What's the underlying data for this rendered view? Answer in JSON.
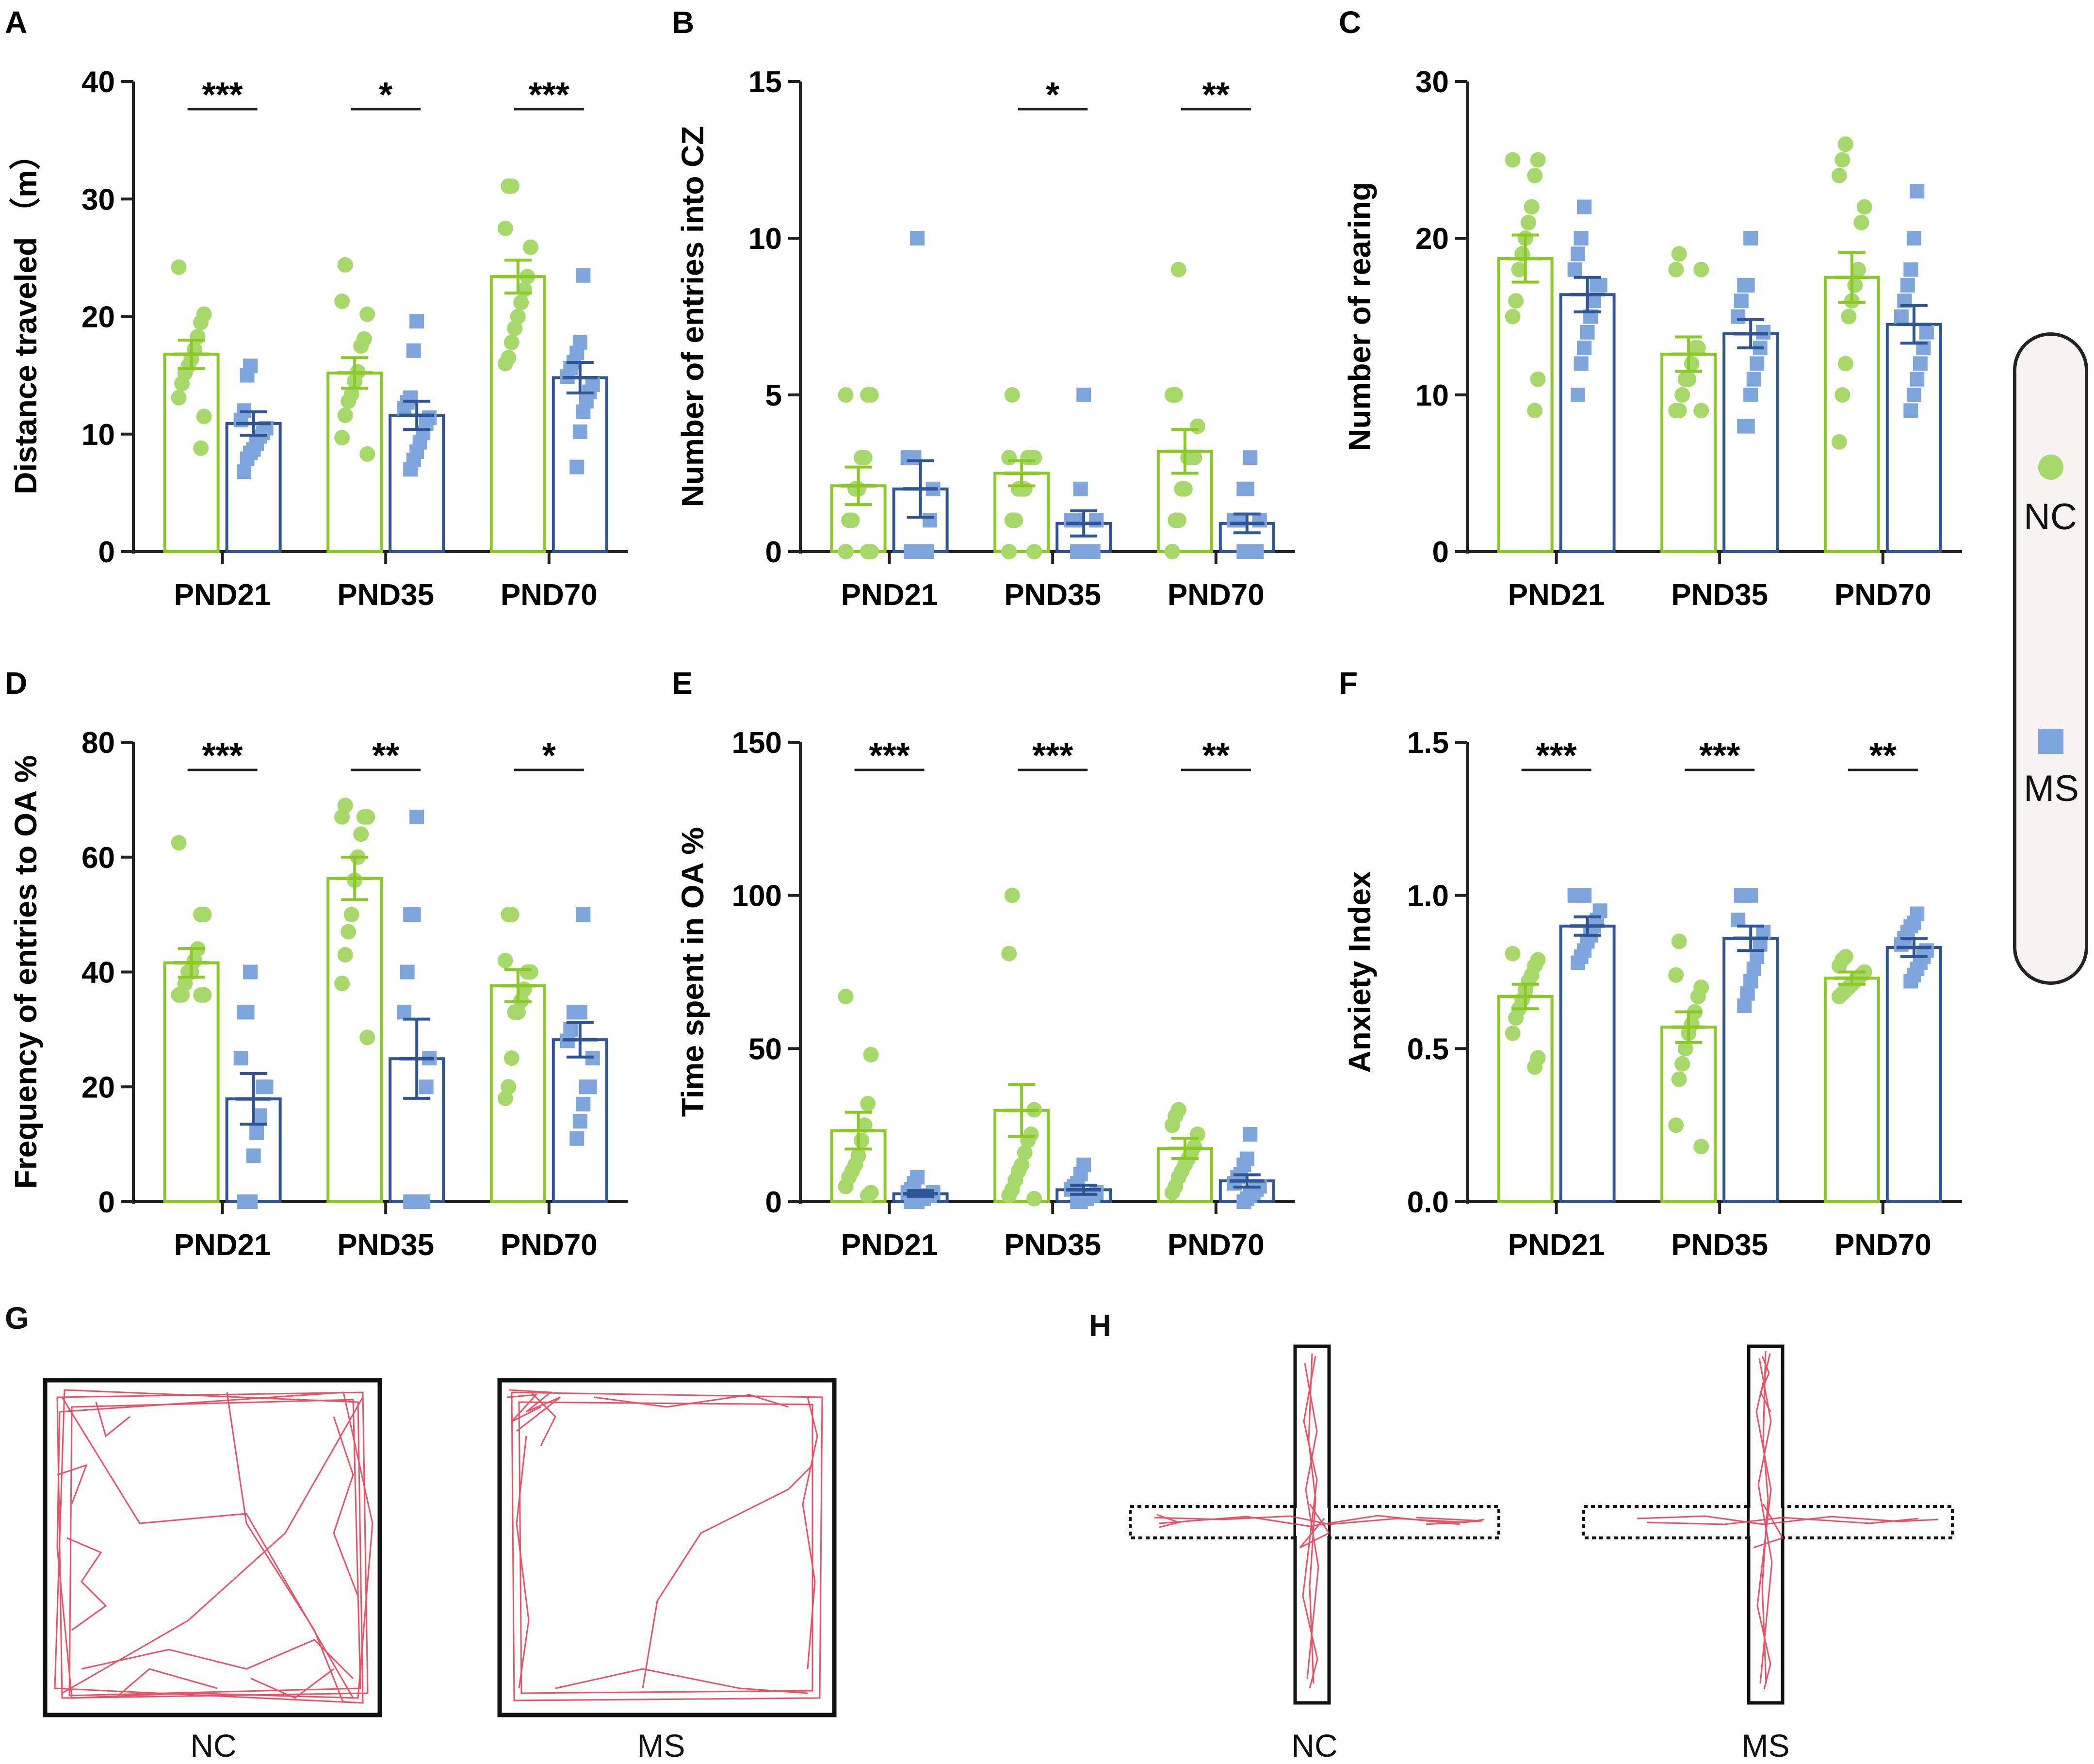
{
  "colors": {
    "nc": "#8ac926",
    "nc_dot": "#a6d96a",
    "ms": "#2f5597",
    "ms_dot": "#7ea6dc",
    "track": "#e8334a",
    "axis": "#222222"
  },
  "legend": {
    "nc_label": "NC",
    "ms_label": "MS"
  },
  "panels": {
    "G": {
      "label": "G",
      "nc_caption": "NC",
      "ms_caption": "MS"
    },
    "H": {
      "label": "H",
      "nc_caption": "NC",
      "ms_caption": "MS"
    }
  },
  "chart_data": [
    {
      "panel": "A",
      "type": "bar",
      "ylabel": "Distance traveled （m）",
      "categories": [
        "PND21",
        "PND35",
        "PND70"
      ],
      "ylim": [
        0,
        40
      ],
      "yticks": [
        0,
        10,
        20,
        30,
        40
      ],
      "significance": [
        "***",
        "*",
        "***"
      ],
      "series": [
        {
          "name": "NC",
          "values": [
            16.8,
            15.2,
            23.4
          ],
          "sem": [
            1.2,
            1.3,
            1.4
          ],
          "points": [
            [
              24.2,
              20.2,
              19.5,
              18.3,
              17.2,
              16.4,
              15.8,
              15.2,
              14.3,
              13.1,
              11.5,
              8.8
            ],
            [
              24.4,
              21.3,
              20.2,
              18.1,
              17.5,
              15.3,
              14.5,
              13.4,
              12.8,
              11.6,
              9.7,
              8.3
            ],
            [
              31.1,
              31.1,
              27.5,
              25.9,
              23.4,
              22.3,
              21.2,
              20.0,
              19.0,
              17.8,
              16.5,
              16.0
            ]
          ]
        },
        {
          "name": "MS",
          "values": [
            10.9,
            11.6,
            14.8
          ],
          "sem": [
            1.0,
            1.2,
            1.3
          ],
          "points": [
            [
              15.8,
              15.0,
              12.0,
              11.2,
              10.5,
              10.1,
              9.8,
              9.2,
              8.7,
              8.4,
              7.9,
              6.8
            ],
            [
              19.6,
              17.1,
              13.1,
              12.7,
              12.2,
              11.4,
              10.9,
              10.1,
              9.3,
              8.5,
              7.8,
              7.0
            ],
            [
              23.5,
              17.8,
              16.9,
              16.1,
              15.6,
              14.9,
              14.2,
              13.6,
              12.8,
              11.9,
              10.2,
              7.2
            ]
          ]
        }
      ]
    },
    {
      "panel": "B",
      "type": "bar",
      "ylabel": "Number of entries into CZ",
      "categories": [
        "PND21",
        "PND35",
        "PND70"
      ],
      "ylim": [
        0,
        15
      ],
      "yticks": [
        0,
        5,
        10,
        15
      ],
      "significance": [
        "",
        "*",
        "**"
      ],
      "series": [
        {
          "name": "NC",
          "values": [
            2.1,
            2.5,
            3.2
          ],
          "sem": [
            0.6,
            0.4,
            0.7
          ],
          "points": [
            [
              5,
              5,
              5,
              3,
              3,
              2,
              2,
              1,
              1,
              0,
              0,
              0
            ],
            [
              5,
              3,
              3,
              3,
              3,
              2,
              2,
              2,
              1,
              1,
              0,
              0
            ],
            [
              9,
              5,
              5,
              4,
              3,
              3,
              3,
              2,
              2,
              1,
              1,
              0
            ]
          ]
        },
        {
          "name": "MS",
          "values": [
            2.0,
            0.9,
            0.9
          ],
          "sem": [
            0.9,
            0.4,
            0.3
          ],
          "points": [
            [
              10,
              3,
              3,
              3,
              2,
              1,
              0,
              0,
              0,
              0,
              0,
              0
            ],
            [
              5,
              2,
              1,
              1,
              1,
              1,
              0,
              0,
              0,
              0,
              0,
              0
            ],
            [
              3,
              2,
              2,
              1,
              1,
              1,
              1,
              0,
              0,
              0,
              0,
              0
            ]
          ]
        }
      ]
    },
    {
      "panel": "C",
      "type": "bar",
      "ylabel": "Number of rearing",
      "categories": [
        "PND21",
        "PND35",
        "PND70"
      ],
      "ylim": [
        0,
        30
      ],
      "yticks": [
        0,
        10,
        20,
        30
      ],
      "significance": [
        "",
        "",
        ""
      ],
      "series": [
        {
          "name": "NC",
          "values": [
            18.7,
            12.6,
            17.5
          ],
          "sem": [
            1.5,
            1.1,
            1.6
          ],
          "points": [
            [
              25,
              25,
              24,
              22,
              21,
              20,
              19,
              18,
              16,
              15,
              11,
              9
            ],
            [
              19,
              18,
              18,
              13,
              13,
              12,
              11,
              11,
              10,
              9,
              9,
              9
            ],
            [
              26,
              25,
              24,
              22,
              21,
              18,
              17,
              16,
              15,
              12,
              10,
              7
            ]
          ]
        },
        {
          "name": "MS",
          "values": [
            16.4,
            13.9,
            14.5
          ],
          "sem": [
            1.1,
            0.9,
            1.2
          ],
          "points": [
            [
              22,
              20,
              19,
              18,
              17,
              17,
              16,
              15,
              14,
              13,
              12,
              10
            ],
            [
              20,
              17,
              17,
              16,
              15,
              14,
              13,
              12,
              11,
              10,
              8,
              8
            ],
            [
              23,
              20,
              18,
              17,
              16,
              15,
              14,
              13,
              12,
              11,
              10,
              9
            ]
          ]
        }
      ]
    },
    {
      "panel": "D",
      "type": "bar",
      "ylabel": "Frequency of entries to OA %",
      "categories": [
        "PND21",
        "PND35",
        "PND70"
      ],
      "ylim": [
        0,
        80
      ],
      "yticks": [
        0,
        20,
        40,
        60,
        80
      ],
      "significance": [
        "***",
        "**",
        "*"
      ],
      "series": [
        {
          "name": "NC",
          "values": [
            41.6,
            56.3,
            37.6
          ],
          "sem": [
            2.5,
            3.7,
            2.8
          ],
          "points": [
            [
              62.5,
              50,
              50,
              44,
              42,
              40,
              40,
              38,
              36,
              36,
              36,
              36
            ],
            [
              69,
              67,
              67,
              67,
              64,
              60,
              56,
              50,
              47,
              43,
              38,
              28.6
            ],
            [
              50,
              50,
              42,
              40,
              40,
              37,
              35,
              33,
              33,
              25,
              20,
              18
            ]
          ]
        },
        {
          "name": "MS",
          "values": [
            17.9,
            24.9,
            28.2
          ],
          "sem": [
            4.4,
            6.9,
            3.0
          ],
          "points": [
            [
              40,
              33,
              33,
              25,
              20,
              20,
              15,
              12,
              8,
              0,
              0,
              0
            ],
            [
              67,
              50,
              50,
              40,
              33,
              25,
              20,
              0,
              0,
              0,
              0,
              0
            ],
            [
              50,
              33,
              33,
              33,
              30,
              28,
              25,
              20,
              20,
              17,
              14,
              11
            ]
          ]
        }
      ]
    },
    {
      "panel": "E",
      "type": "bar",
      "ylabel": "Time spent in OA %",
      "categories": [
        "PND21",
        "PND35",
        "PND70"
      ],
      "ylim": [
        0,
        150
      ],
      "yticks": [
        0,
        50,
        100,
        150
      ],
      "significance": [
        "***",
        "***",
        "**"
      ],
      "series": [
        {
          "name": "NC",
          "values": [
            23.2,
            29.8,
            17.4
          ],
          "sem": [
            6.0,
            8.5,
            3.3
          ],
          "points": [
            [
              67,
              48,
              32,
              25,
              20,
              15,
              12,
              10,
              8,
              5,
              3,
              2
            ],
            [
              100,
              81,
              30,
              22,
              20,
              16,
              12,
              10,
              7,
              4,
              2,
              1
            ],
            [
              30,
              28,
              25,
              22,
              18,
              16,
              14,
              12,
              10,
              8,
              5,
              3
            ]
          ]
        },
        {
          "name": "MS",
          "values": [
            2.6,
            3.9,
            6.8
          ],
          "sem": [
            1.0,
            1.5,
            2.0
          ],
          "points": [
            [
              8,
              6,
              4,
              3,
              3,
              2,
              2,
              1,
              1,
              0,
              0,
              0
            ],
            [
              12,
              9,
              6,
              5,
              4,
              3,
              2,
              2,
              1,
              1,
              0,
              0
            ],
            [
              22,
              14,
              12,
              9,
              8,
              6,
              5,
              4,
              3,
              2,
              1,
              0
            ]
          ]
        }
      ]
    },
    {
      "panel": "F",
      "type": "bar",
      "ylabel": "Anxiety Index",
      "categories": [
        "PND21",
        "PND35",
        "PND70"
      ],
      "ylim": [
        0,
        1.5
      ],
      "yticks": [
        0.0,
        0.5,
        1.0,
        1.5
      ],
      "significance": [
        "***",
        "***",
        "**"
      ],
      "series": [
        {
          "name": "NC",
          "values": [
            0.67,
            0.57,
            0.73
          ],
          "sem": [
            0.04,
            0.05,
            0.02
          ],
          "points": [
            [
              0.81,
              0.79,
              0.77,
              0.74,
              0.72,
              0.69,
              0.66,
              0.63,
              0.6,
              0.55,
              0.47,
              0.44
            ],
            [
              0.85,
              0.74,
              0.7,
              0.67,
              0.62,
              0.58,
              0.55,
              0.5,
              0.45,
              0.4,
              0.25,
              0.18
            ],
            [
              0.8,
              0.79,
              0.77,
              0.75,
              0.74,
              0.73,
              0.72,
              0.71,
              0.7,
              0.69,
              0.68,
              0.67
            ]
          ]
        },
        {
          "name": "MS",
          "values": [
            0.9,
            0.86,
            0.83
          ],
          "sem": [
            0.03,
            0.04,
            0.03
          ],
          "points": [
            [
              1.0,
              1.0,
              1.0,
              1.0,
              0.95,
              0.92,
              0.9,
              0.87,
              0.85,
              0.82,
              0.8,
              0.78
            ],
            [
              1.0,
              1.0,
              1.0,
              1.0,
              0.92,
              0.88,
              0.84,
              0.8,
              0.76,
              0.72,
              0.68,
              0.64
            ],
            [
              0.94,
              0.91,
              0.9,
              0.88,
              0.86,
              0.84,
              0.82,
              0.8,
              0.78,
              0.76,
              0.74,
              0.72
            ]
          ]
        }
      ]
    }
  ]
}
